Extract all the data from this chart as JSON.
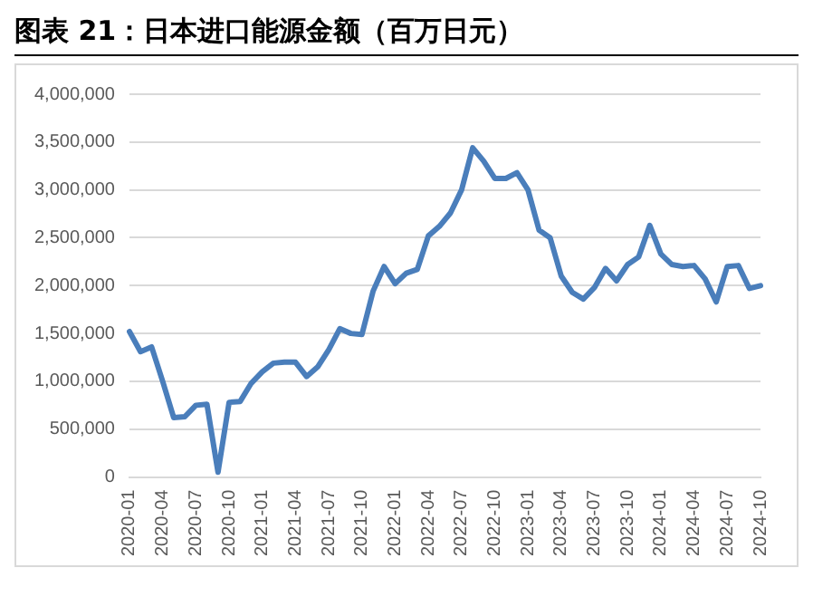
{
  "chart_data": {
    "type": "line",
    "title": "图表 21：日本进口能源金额（百万日元）",
    "categories": [
      "2020-01",
      null,
      null,
      "2020-04",
      null,
      null,
      "2020-07",
      null,
      null,
      "2020-10",
      null,
      null,
      "2021-01",
      null,
      null,
      "2021-04",
      null,
      null,
      "2021-07",
      null,
      null,
      "2021-10",
      null,
      null,
      "2022-01",
      null,
      null,
      "2022-04",
      null,
      null,
      "2022-07",
      null,
      null,
      "2022-10",
      null,
      null,
      "2023-01",
      null,
      null,
      "2023-04",
      null,
      null,
      "2023-07",
      null,
      null,
      "2023-10",
      null,
      null,
      "2024-01",
      null,
      null,
      "2024-04",
      null,
      null,
      "2024-07",
      null,
      null,
      "2024-10"
    ],
    "series": [
      {
        "color": "#4a7ebb",
        "values": [
          1520000,
          1310000,
          1360000,
          1000000,
          620000,
          630000,
          750000,
          760000,
          50000,
          780000,
          790000,
          980000,
          1100000,
          1190000,
          1200000,
          1200000,
          1050000,
          1150000,
          1330000,
          1550000,
          1500000,
          1490000,
          1940000,
          2200000,
          2020000,
          2130000,
          2170000,
          2520000,
          2620000,
          2760000,
          3000000,
          3440000,
          3300000,
          3120000,
          3120000,
          3180000,
          3000000,
          2580000,
          2500000,
          2100000,
          1930000,
          1860000,
          1980000,
          2180000,
          2050000,
          2220000,
          2300000,
          2630000,
          2330000,
          2220000,
          2200000,
          2210000,
          2070000,
          1830000,
          2200000,
          2210000,
          1970000,
          2000000
        ]
      }
    ],
    "ylim": [
      0,
      4000000
    ],
    "yticks": [
      {
        "value": 0,
        "label": "0"
      },
      {
        "value": 500000,
        "label": "500,000"
      },
      {
        "value": 1000000,
        "label": "1,000,000"
      },
      {
        "value": 1500000,
        "label": "1,500,000"
      },
      {
        "value": 2000000,
        "label": "2,000,000"
      },
      {
        "value": 2500000,
        "label": "2,500,000"
      },
      {
        "value": 3000000,
        "label": "3,000,000"
      },
      {
        "value": 3500000,
        "label": "3,500,000"
      },
      {
        "value": 4000000,
        "label": "4,000,000"
      }
    ],
    "grid": "y",
    "legend": false,
    "marker": "none",
    "line_style": "solid"
  }
}
